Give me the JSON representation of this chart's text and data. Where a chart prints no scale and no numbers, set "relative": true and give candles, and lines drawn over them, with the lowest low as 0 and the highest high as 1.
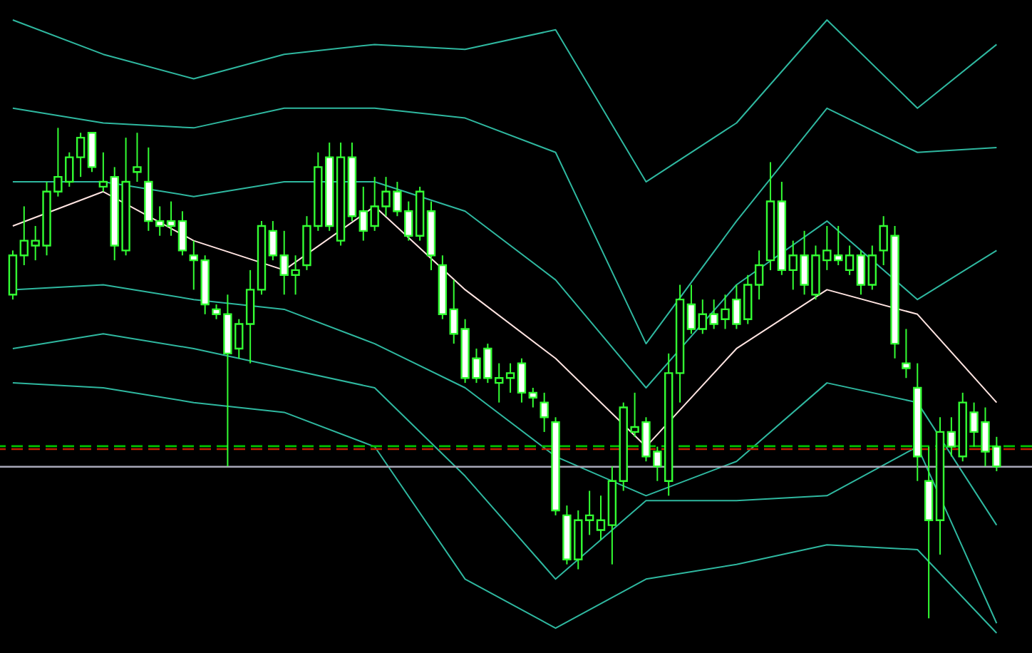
{
  "chart_data": {
    "type": "candlestick",
    "relative": true,
    "color": "#33ff33",
    "categories": [
      null,
      null,
      null,
      null,
      null,
      null,
      null,
      null,
      null,
      null,
      null,
      null,
      null,
      null,
      null,
      null,
      null,
      null,
      null,
      null,
      null,
      null,
      null,
      null,
      null,
      null,
      null,
      null,
      null,
      null,
      null,
      null,
      null,
      null,
      null,
      null,
      null,
      null,
      null,
      null,
      null,
      null,
      null,
      null,
      null,
      null,
      null,
      null,
      null,
      null,
      null,
      null,
      null,
      null,
      null,
      null,
      null,
      null,
      null,
      null,
      null,
      null,
      null,
      null,
      null,
      null,
      null,
      null,
      null,
      null,
      null,
      null,
      null,
      null,
      null,
      null,
      null,
      null,
      null,
      null,
      null,
      null,
      null,
      null,
      null,
      null,
      null,
      null
    ],
    "ohlc": [
      [
        0.66,
        0.75,
        0.65,
        0.74
      ],
      [
        0.74,
        0.84,
        0.72,
        0.77
      ],
      [
        0.76,
        0.8,
        0.73,
        0.77
      ],
      [
        0.76,
        0.89,
        0.74,
        0.87
      ],
      [
        0.87,
        1.0,
        0.86,
        0.9
      ],
      [
        0.89,
        0.95,
        0.88,
        0.94
      ],
      [
        0.94,
        0.99,
        0.9,
        0.98
      ],
      [
        0.99,
        0.99,
        0.91,
        0.92
      ],
      [
        0.88,
        0.95,
        0.87,
        0.89
      ],
      [
        0.9,
        0.92,
        0.73,
        0.76
      ],
      [
        0.75,
        0.98,
        0.74,
        0.89
      ],
      [
        0.91,
        0.99,
        0.89,
        0.92
      ],
      [
        0.89,
        0.96,
        0.79,
        0.81
      ],
      [
        0.81,
        0.84,
        0.78,
        0.8
      ],
      [
        0.81,
        0.85,
        0.78,
        0.8
      ],
      [
        0.81,
        0.83,
        0.74,
        0.75
      ],
      [
        0.74,
        0.77,
        0.67,
        0.73
      ],
      [
        0.73,
        0.74,
        0.62,
        0.64
      ],
      [
        0.63,
        0.64,
        0.61,
        0.62
      ],
      [
        0.62,
        0.66,
        0.31,
        0.54
      ],
      [
        0.55,
        0.61,
        0.53,
        0.6
      ],
      [
        0.6,
        0.71,
        0.52,
        0.67
      ],
      [
        0.67,
        0.81,
        0.66,
        0.8
      ],
      [
        0.79,
        0.81,
        0.73,
        0.74
      ],
      [
        0.74,
        0.79,
        0.66,
        0.7
      ],
      [
        0.7,
        0.74,
        0.66,
        0.71
      ],
      [
        0.72,
        0.82,
        0.71,
        0.8
      ],
      [
        0.8,
        0.95,
        0.79,
        0.92
      ],
      [
        0.94,
        0.97,
        0.79,
        0.8
      ],
      [
        0.77,
        0.97,
        0.76,
        0.94
      ],
      [
        0.94,
        0.97,
        0.81,
        0.82
      ],
      [
        0.83,
        0.88,
        0.77,
        0.79
      ],
      [
        0.8,
        0.9,
        0.79,
        0.84
      ],
      [
        0.84,
        0.9,
        0.82,
        0.87
      ],
      [
        0.87,
        0.89,
        0.82,
        0.83
      ],
      [
        0.83,
        0.85,
        0.77,
        0.78
      ],
      [
        0.78,
        0.88,
        0.77,
        0.87
      ],
      [
        0.83,
        0.85,
        0.71,
        0.74
      ],
      [
        0.72,
        0.74,
        0.61,
        0.62
      ],
      [
        0.63,
        0.69,
        0.56,
        0.58
      ],
      [
        0.59,
        0.61,
        0.48,
        0.49
      ],
      [
        0.53,
        0.55,
        0.48,
        0.49
      ],
      [
        0.55,
        0.56,
        0.48,
        0.49
      ],
      [
        0.48,
        0.52,
        0.44,
        0.49
      ],
      [
        0.49,
        0.52,
        0.46,
        0.5
      ],
      [
        0.52,
        0.53,
        0.44,
        0.46
      ],
      [
        0.46,
        0.47,
        0.43,
        0.45
      ],
      [
        0.44,
        0.46,
        0.38,
        0.41
      ],
      [
        0.4,
        0.41,
        0.21,
        0.22
      ],
      [
        0.21,
        0.23,
        0.11,
        0.12
      ],
      [
        0.12,
        0.22,
        0.1,
        0.2
      ],
      [
        0.2,
        0.26,
        0.17,
        0.21
      ],
      [
        0.18,
        0.25,
        0.16,
        0.2
      ],
      [
        0.19,
        0.31,
        0.11,
        0.28
      ],
      [
        0.28,
        0.44,
        0.26,
        0.43
      ],
      [
        0.38,
        0.46,
        0.37,
        0.39
      ],
      [
        0.4,
        0.41,
        0.32,
        0.33
      ],
      [
        0.34,
        0.35,
        0.28,
        0.31
      ],
      [
        0.28,
        0.54,
        0.25,
        0.5
      ],
      [
        0.5,
        0.68,
        0.44,
        0.65
      ],
      [
        0.64,
        0.68,
        0.58,
        0.59
      ],
      [
        0.59,
        0.65,
        0.58,
        0.62
      ],
      [
        0.62,
        0.65,
        0.59,
        0.6
      ],
      [
        0.61,
        0.66,
        0.59,
        0.63
      ],
      [
        0.65,
        0.68,
        0.59,
        0.6
      ],
      [
        0.61,
        0.7,
        0.6,
        0.68
      ],
      [
        0.68,
        0.75,
        0.65,
        0.72
      ],
      [
        0.73,
        0.93,
        0.71,
        0.85
      ],
      [
        0.85,
        0.89,
        0.7,
        0.71
      ],
      [
        0.71,
        0.77,
        0.67,
        0.74
      ],
      [
        0.74,
        0.79,
        0.66,
        0.68
      ],
      [
        0.66,
        0.76,
        0.65,
        0.74
      ],
      [
        0.73,
        0.8,
        0.71,
        0.75
      ],
      [
        0.74,
        0.8,
        0.72,
        0.73
      ],
      [
        0.71,
        0.76,
        0.7,
        0.74
      ],
      [
        0.74,
        0.75,
        0.66,
        0.68
      ],
      [
        0.68,
        0.76,
        0.67,
        0.74
      ],
      [
        0.75,
        0.82,
        0.72,
        0.8
      ],
      [
        0.78,
        0.8,
        0.53,
        0.56
      ],
      [
        0.52,
        0.59,
        0.49,
        0.51
      ],
      [
        0.47,
        0.52,
        0.28,
        0.33
      ],
      [
        0.28,
        0.35,
        0.0,
        0.2
      ],
      [
        0.2,
        0.41,
        0.13,
        0.38
      ],
      [
        0.38,
        0.41,
        0.33,
        0.35
      ],
      [
        0.33,
        0.46,
        0.32,
        0.44
      ],
      [
        0.42,
        0.44,
        0.35,
        0.38
      ],
      [
        0.4,
        0.43,
        0.31,
        0.34
      ],
      [
        0.35,
        0.37,
        0.3,
        0.31
      ]
    ],
    "series": [
      {
        "type": "line",
        "color": "#2fb8a0",
        "values": [
          1.22,
          null,
          null,
          null,
          null,
          null,
          null,
          null,
          1.15,
          null,
          null,
          null,
          null,
          null,
          null,
          null,
          1.1,
          null,
          null,
          null,
          null,
          null,
          null,
          null,
          1.15,
          null,
          null,
          null,
          null,
          null,
          null,
          null,
          1.17,
          null,
          null,
          null,
          null,
          null,
          null,
          null,
          1.16,
          null,
          null,
          null,
          null,
          null,
          null,
          null,
          1.2,
          null,
          null,
          null,
          null,
          null,
          null,
          null,
          0.89,
          null,
          null,
          null,
          null,
          null,
          null,
          null,
          1.01,
          null,
          null,
          null,
          null,
          null,
          null,
          null,
          1.22,
          null,
          null,
          null,
          null,
          null,
          null,
          null,
          1.04,
          null,
          null,
          null,
          null,
          null,
          null,
          1.17
        ]
      },
      {
        "type": "line",
        "color": "#2fb8a0",
        "values": [
          1.04,
          null,
          null,
          null,
          null,
          null,
          null,
          null,
          1.01,
          null,
          null,
          null,
          null,
          null,
          null,
          null,
          1.0,
          null,
          null,
          null,
          null,
          null,
          null,
          null,
          1.04,
          null,
          null,
          null,
          null,
          null,
          null,
          null,
          1.04,
          null,
          null,
          null,
          null,
          null,
          null,
          null,
          1.02,
          null,
          null,
          null,
          null,
          null,
          null,
          null,
          0.95,
          null,
          null,
          null,
          null,
          null,
          null,
          null,
          0.56,
          null,
          null,
          null,
          null,
          null,
          null,
          null,
          0.81,
          null,
          null,
          null,
          null,
          null,
          null,
          null,
          1.04,
          null,
          null,
          null,
          null,
          null,
          null,
          null,
          0.95,
          null,
          null,
          null,
          null,
          null,
          null,
          0.96
        ]
      },
      {
        "type": "line",
        "color": "#2fb8a0",
        "values": [
          0.89,
          null,
          null,
          null,
          null,
          null,
          null,
          null,
          0.89,
          null,
          null,
          null,
          null,
          null,
          null,
          null,
          0.86,
          null,
          null,
          null,
          null,
          null,
          null,
          null,
          0.89,
          null,
          null,
          null,
          null,
          null,
          null,
          null,
          0.89,
          null,
          null,
          null,
          null,
          null,
          null,
          null,
          0.83,
          null,
          null,
          null,
          null,
          null,
          null,
          null,
          0.69,
          null,
          null,
          null,
          null,
          null,
          null,
          null,
          0.47,
          null,
          null,
          null,
          null,
          null,
          null,
          null,
          0.68,
          null,
          null,
          null,
          null,
          null,
          null,
          null,
          0.81,
          null,
          null,
          null,
          null,
          null,
          null,
          null,
          0.65,
          null,
          null,
          null,
          null,
          null,
          null,
          0.75
        ]
      },
      {
        "type": "line",
        "color": "#ffe4e1",
        "values": [
          0.8,
          null,
          null,
          null,
          null,
          null,
          null,
          null,
          0.87,
          null,
          null,
          null,
          null,
          null,
          null,
          null,
          0.77,
          null,
          null,
          null,
          null,
          null,
          null,
          null,
          0.71,
          null,
          null,
          null,
          null,
          null,
          null,
          null,
          0.84,
          null,
          null,
          null,
          null,
          null,
          null,
          null,
          0.67,
          null,
          null,
          null,
          null,
          null,
          null,
          null,
          0.53,
          null,
          null,
          null,
          null,
          null,
          null,
          null,
          0.35,
          null,
          null,
          null,
          null,
          null,
          null,
          null,
          0.55,
          null,
          null,
          null,
          null,
          null,
          null,
          null,
          0.67,
          null,
          null,
          null,
          null,
          null,
          null,
          null,
          0.62,
          null,
          null,
          null,
          null,
          null,
          null,
          0.44
        ]
      },
      {
        "type": "line",
        "color": "#2fb8a0",
        "values": [
          0.67,
          null,
          null,
          null,
          null,
          null,
          null,
          null,
          0.68,
          null,
          null,
          null,
          null,
          null,
          null,
          null,
          0.65,
          null,
          null,
          null,
          null,
          null,
          null,
          null,
          0.63,
          null,
          null,
          null,
          null,
          null,
          null,
          null,
          0.56,
          null,
          null,
          null,
          null,
          null,
          null,
          null,
          0.47,
          null,
          null,
          null,
          null,
          null,
          null,
          null,
          0.33,
          null,
          null,
          null,
          null,
          null,
          null,
          null,
          0.25,
          null,
          null,
          null,
          null,
          null,
          null,
          null,
          0.32,
          null,
          null,
          null,
          null,
          null,
          null,
          null,
          0.48,
          null,
          null,
          null,
          null,
          null,
          null,
          null,
          0.44,
          null,
          null,
          null,
          null,
          null,
          null,
          0.19
        ]
      },
      {
        "type": "line",
        "color": "#2fb8a0",
        "values": [
          0.55,
          null,
          null,
          null,
          null,
          null,
          null,
          null,
          0.58,
          null,
          null,
          null,
          null,
          null,
          null,
          null,
          0.55,
          null,
          null,
          null,
          null,
          null,
          null,
          null,
          0.51,
          null,
          null,
          null,
          null,
          null,
          null,
          null,
          0.47,
          null,
          null,
          null,
          null,
          null,
          null,
          null,
          0.29,
          null,
          null,
          null,
          null,
          null,
          null,
          null,
          0.08,
          null,
          null,
          null,
          null,
          null,
          null,
          null,
          0.24,
          null,
          null,
          null,
          null,
          null,
          null,
          null,
          0.24,
          null,
          null,
          null,
          null,
          null,
          null,
          null,
          0.25,
          null,
          null,
          null,
          null,
          null,
          null,
          null,
          0.35,
          null,
          null,
          null,
          null,
          null,
          null,
          -0.01
        ]
      },
      {
        "type": "line",
        "color": "#2fb8a0",
        "values": [
          0.48,
          null,
          null,
          null,
          null,
          null,
          null,
          null,
          0.47,
          null,
          null,
          null,
          null,
          null,
          null,
          null,
          0.44,
          null,
          null,
          null,
          null,
          null,
          null,
          null,
          0.42,
          null,
          null,
          null,
          null,
          null,
          null,
          null,
          0.35,
          null,
          null,
          null,
          null,
          null,
          null,
          null,
          0.08,
          null,
          null,
          null,
          null,
          null,
          null,
          null,
          -0.02,
          null,
          null,
          null,
          null,
          null,
          null,
          null,
          0.08,
          null,
          null,
          null,
          null,
          null,
          null,
          null,
          0.11,
          null,
          null,
          null,
          null,
          null,
          null,
          null,
          0.15,
          null,
          null,
          null,
          null,
          null,
          null,
          null,
          0.14,
          null,
          null,
          null,
          null,
          null,
          null,
          -0.03
        ]
      }
    ],
    "ref_lines": [
      {
        "axis": "y",
        "value": 0.351,
        "color": "#00c000",
        "line_style": "dashed"
      },
      {
        "axis": "y",
        "value": 0.345,
        "color": "#c02000",
        "line_style": "dashed"
      },
      {
        "axis": "y",
        "value": 0.309,
        "color": "#a8a8b8",
        "line_style": "solid"
      }
    ]
  }
}
